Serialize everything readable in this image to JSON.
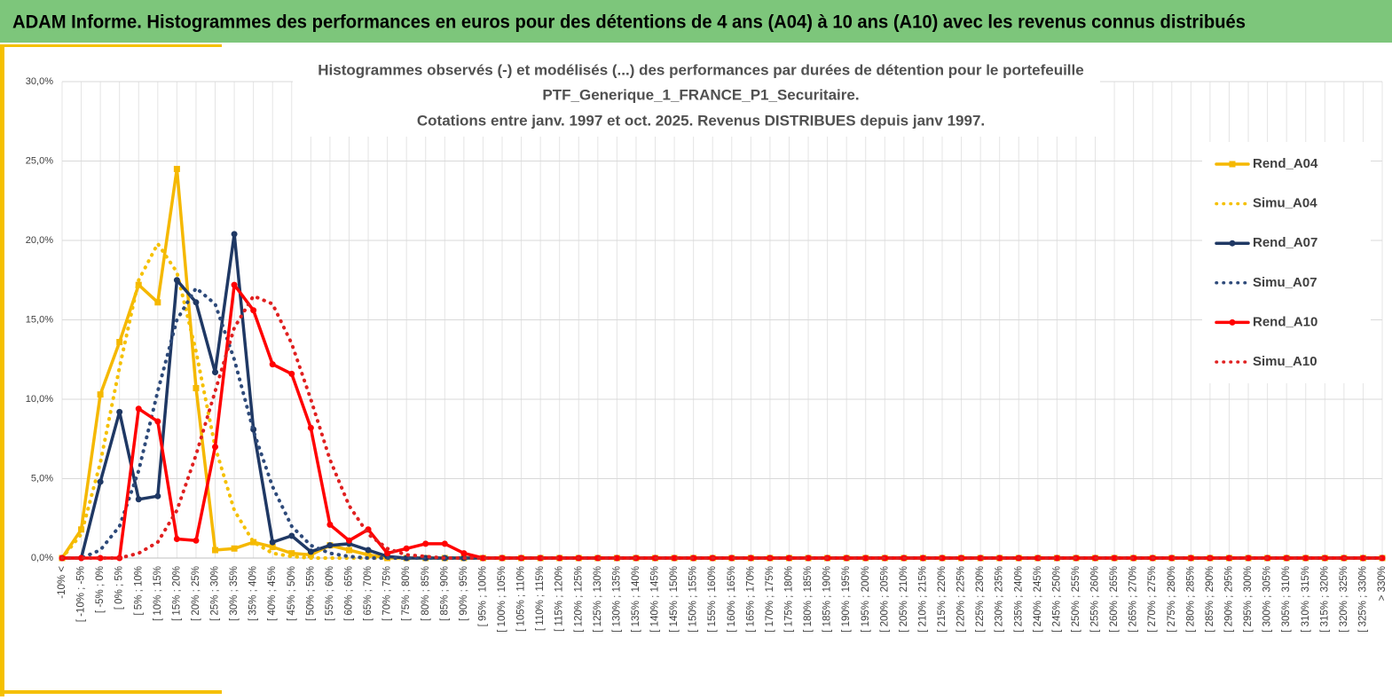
{
  "page_title": "ADAM Informe. Histogrammes des performances en euros pour des détentions de 4 ans (A04) à 10 ans (A10) avec les revenus connus distribués",
  "chart_data": {
    "type": "line",
    "title": [
      "Histogrammes observés (-) et modélisés (...) des performances par durées de détention pour le portefeuille",
      "PTF_Generique_1_FRANCE_P1_Securitaire.",
      "Cotations entre janv. 1997 et oct. 2025. Revenus DISTRIBUES depuis janv 1997."
    ],
    "categories": [
      "-10% <",
      "[ -10% ; -5%",
      "[ -5% ; 0%",
      "[ 0% ; 5%",
      "[ 5% ; 10%",
      "[ 10% ; 15%",
      "[ 15% ; 20%",
      "[ 20% ; 25%",
      "[ 25% ; 30%",
      "[ 30% ; 35%",
      "[ 35% ; 40%",
      "[ 40% ; 45%",
      "[ 45% ; 50%",
      "[ 50% ; 55%",
      "[ 55% ; 60%",
      "[ 60% ; 65%",
      "[ 65% ; 70%",
      "[ 70% ; 75%",
      "[ 75% ; 80%",
      "[ 80% ; 85%",
      "[ 85% ; 90%",
      "[ 90% ; 95%",
      "[ 95% ; 100%",
      "[ 100% ; 105%",
      "[ 105% ; 110%",
      "[ 110% ; 115%",
      "[ 115% ; 120%",
      "[ 120% ; 125%",
      "[ 125% ; 130%",
      "[ 130% ; 135%",
      "[ 135% ; 140%",
      "[ 140% ; 145%",
      "[ 145% ; 150%",
      "[ 150% ; 155%",
      "[ 155% ; 160%",
      "[ 160% ; 165%",
      "[ 165% ; 170%",
      "[ 170% ; 175%",
      "[ 175% ; 180%",
      "[ 180% ; 185%",
      "[ 185% ; 190%",
      "[ 190% ; 195%",
      "[ 195% ; 200%",
      "[ 200% ; 205%",
      "[ 205% ; 210%",
      "[ 210% ; 215%",
      "[ 215% ; 220%",
      "[ 220% ; 225%",
      "[ 225% ; 230%",
      "[ 230% ; 235%",
      "[ 235% ; 240%",
      "[ 240% ; 245%",
      "[ 245% ; 250%",
      "[ 250% ; 255%",
      "[ 255% ; 260%",
      "[ 260% ; 265%",
      "[ 265% ; 270%",
      "[ 270% ; 275%",
      "[ 275% ; 280%",
      "[ 280% ; 285%",
      "[ 285% ; 290%",
      "[ 290% ; 295%",
      "[ 295% ; 300%",
      "[ 300% ; 305%",
      "[ 305% ; 310%",
      "[ 310% ; 315%",
      "[ 315% ; 320%",
      "[ 320% ; 325%",
      "[ 325% ; 330%",
      "> 330%"
    ],
    "series": [
      {
        "name": "Rend_A04",
        "color": "#f5b800",
        "style": "solid",
        "marker": "square",
        "values": [
          0,
          1.8,
          10.3,
          13.6,
          17.2,
          16.1,
          24.5,
          10.7,
          0.5,
          0.6,
          1.0,
          0.7,
          0.3,
          0.2,
          0.8,
          0.5,
          0.2,
          0,
          0,
          0,
          0,
          0,
          0,
          0,
          0,
          0,
          0,
          0,
          0,
          0,
          0,
          0,
          0,
          0,
          0,
          0,
          0,
          0,
          0,
          0,
          0,
          0,
          0,
          0,
          0,
          0,
          0,
          0,
          0,
          0,
          0,
          0,
          0,
          0,
          0,
          0,
          0,
          0,
          0,
          0,
          0,
          0,
          0,
          0,
          0,
          0,
          0,
          0,
          0,
          0
        ]
      },
      {
        "name": "Simu_A04",
        "color": "#f5c000",
        "style": "dotted",
        "marker": "none",
        "values": [
          0,
          1.5,
          6,
          12,
          17.5,
          19.8,
          18,
          13,
          7,
          3,
          1,
          0.3,
          0.1,
          0,
          0,
          0,
          0,
          0,
          0,
          0,
          0,
          0,
          0,
          0,
          0,
          0,
          0,
          0,
          0,
          0,
          0,
          0,
          0,
          0,
          0,
          0,
          0,
          0,
          0,
          0,
          0,
          0,
          0,
          0,
          0,
          0,
          0,
          0,
          0,
          0,
          0,
          0,
          0,
          0,
          0,
          0,
          0,
          0,
          0,
          0,
          0,
          0,
          0,
          0,
          0,
          0,
          0,
          0,
          0,
          0
        ]
      },
      {
        "name": "Rend_A07",
        "color": "#1f3864",
        "style": "solid",
        "marker": "circle",
        "values": [
          0,
          0,
          4.8,
          9.2,
          3.7,
          3.9,
          17.5,
          16.1,
          11.7,
          20.4,
          8.1,
          1.0,
          1.4,
          0.4,
          0.8,
          0.9,
          0.5,
          0.1,
          0,
          0,
          0,
          0,
          0,
          0,
          0,
          0,
          0,
          0,
          0,
          0,
          0,
          0,
          0,
          0,
          0,
          0,
          0,
          0,
          0,
          0,
          0,
          0,
          0,
          0,
          0,
          0,
          0,
          0,
          0,
          0,
          0,
          0,
          0,
          0,
          0,
          0,
          0,
          0,
          0,
          0,
          0,
          0,
          0,
          0,
          0,
          0,
          0,
          0,
          0,
          0
        ]
      },
      {
        "name": "Simu_A07",
        "color": "#2e4a7a",
        "style": "dotted",
        "marker": "none",
        "values": [
          0,
          0,
          0.5,
          2,
          5.5,
          10.5,
          15,
          17,
          16,
          12.5,
          8,
          4.5,
          2,
          0.8,
          0.3,
          0.1,
          0,
          0,
          0,
          0,
          0,
          0,
          0,
          0,
          0,
          0,
          0,
          0,
          0,
          0,
          0,
          0,
          0,
          0,
          0,
          0,
          0,
          0,
          0,
          0,
          0,
          0,
          0,
          0,
          0,
          0,
          0,
          0,
          0,
          0,
          0,
          0,
          0,
          0,
          0,
          0,
          0,
          0,
          0,
          0,
          0,
          0,
          0,
          0,
          0,
          0,
          0,
          0,
          0,
          0
        ]
      },
      {
        "name": "Rend_A10",
        "color": "#ff0000",
        "style": "solid",
        "marker": "circle",
        "values": [
          0,
          0,
          0,
          0,
          9.4,
          8.6,
          1.2,
          1.1,
          7.0,
          17.2,
          15.6,
          12.2,
          11.6,
          8.2,
          2.1,
          1.1,
          1.8,
          0.3,
          0.6,
          0.9,
          0.9,
          0.3,
          0,
          0,
          0,
          0,
          0,
          0,
          0,
          0,
          0,
          0,
          0,
          0,
          0,
          0,
          0,
          0,
          0,
          0,
          0,
          0,
          0,
          0,
          0,
          0,
          0,
          0,
          0,
          0,
          0,
          0,
          0,
          0,
          0,
          0,
          0,
          0,
          0,
          0,
          0,
          0,
          0,
          0,
          0,
          0,
          0,
          0,
          0,
          0
        ]
      },
      {
        "name": "Simu_A10",
        "color": "#e02020",
        "style": "dotted",
        "marker": "none",
        "values": [
          0,
          0,
          0,
          0,
          0.3,
          1,
          3,
          6.5,
          10.5,
          14.5,
          16.5,
          16,
          13.5,
          10,
          6.2,
          3.3,
          1.5,
          0.6,
          0.2,
          0.1,
          0,
          0,
          0,
          0,
          0,
          0,
          0,
          0,
          0,
          0,
          0,
          0,
          0,
          0,
          0,
          0,
          0,
          0,
          0,
          0,
          0,
          0,
          0,
          0,
          0,
          0,
          0,
          0,
          0,
          0,
          0,
          0,
          0,
          0,
          0,
          0,
          0,
          0,
          0,
          0,
          0,
          0,
          0,
          0,
          0,
          0,
          0,
          0,
          0,
          0
        ]
      }
    ],
    "ylim": [
      0,
      30
    ],
    "yticks": [
      {
        "value": 0,
        "label": "0,0%"
      },
      {
        "value": 5,
        "label": "5,0%"
      },
      {
        "value": 10,
        "label": "10,0%"
      },
      {
        "value": 15,
        "label": "15,0%"
      },
      {
        "value": 20,
        "label": "20,0%"
      },
      {
        "value": 25,
        "label": "25,0%"
      },
      {
        "value": 30,
        "label": "30,0%"
      }
    ],
    "grid": true,
    "legend": "right"
  }
}
